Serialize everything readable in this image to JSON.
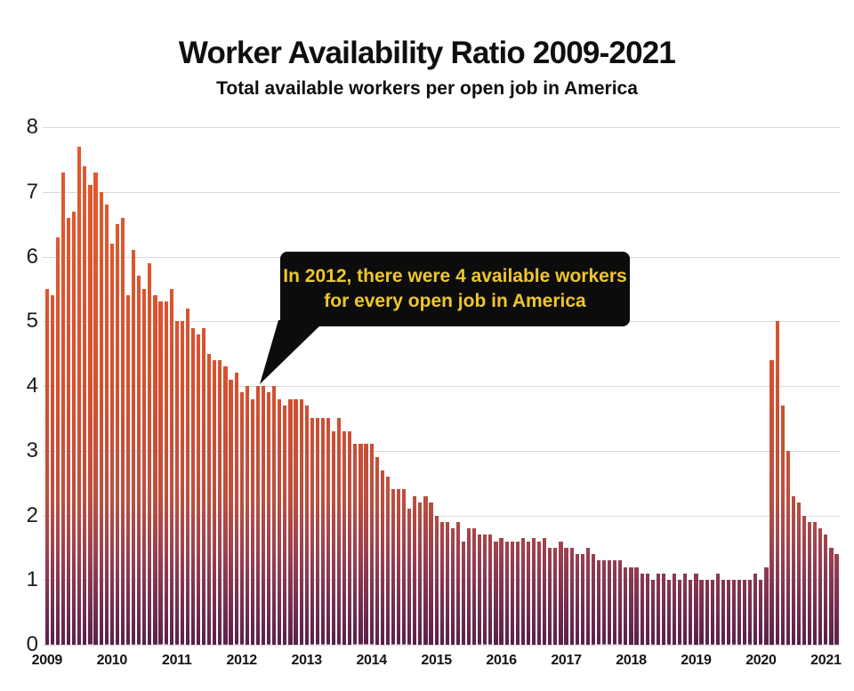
{
  "header": {
    "title": "Worker Availability Ratio 2009-2021",
    "subtitle": "Total available workers per open job in America"
  },
  "annotation": {
    "line1": "In 2012, there were 4 available workers",
    "line2": "for every open job in America",
    "points_to": {
      "month": "2012-04",
      "value": 4.0
    }
  },
  "colors": {
    "background": "#ffffff",
    "grid": "#dadada",
    "axis_text": "#1d1d1d",
    "callout_bg": "#0c0c0c",
    "callout_text": "#efc72b",
    "bar_gradient_stops": [
      {
        "pct": 0,
        "color": "#e45a2d"
      },
      {
        "pct": 27,
        "color": "#dd5630"
      },
      {
        "pct": 49,
        "color": "#d5512f"
      },
      {
        "pct": 72,
        "color": "#bc4f40"
      },
      {
        "pct": 82,
        "color": "#9c4150"
      },
      {
        "pct": 94,
        "color": "#6f2b50"
      },
      {
        "pct": 100,
        "color": "#5a2147"
      }
    ]
  },
  "chart_data": {
    "type": "bar",
    "title": "Worker Availability Ratio 2009-2021",
    "subtitle": "Total available workers per open job in America",
    "xlabel": "",
    "ylabel": "available workers per open job",
    "ylim": [
      0,
      8
    ],
    "yticks": [
      0,
      1,
      2,
      3,
      4,
      5,
      6,
      7,
      8
    ],
    "grid": true,
    "legend": false,
    "x_frequency": "monthly",
    "x_start": "2009-01",
    "x_end": "2021-03",
    "year_tick_labels": [
      "2009",
      "2010",
      "2011",
      "2012",
      "2013",
      "2014",
      "2015",
      "2016",
      "2017",
      "2018",
      "2019",
      "2020",
      "2021"
    ],
    "series": [
      {
        "year": "2009",
        "values": [
          5.5,
          5.4,
          6.3,
          7.3,
          6.6,
          6.7,
          7.7,
          7.4,
          7.1,
          7.3,
          7.0,
          6.8
        ]
      },
      {
        "year": "2010",
        "values": [
          6.2,
          6.5,
          6.6,
          5.4,
          6.1,
          5.7,
          5.5,
          5.9,
          5.4,
          5.3,
          5.3,
          5.5
        ]
      },
      {
        "year": "2011",
        "values": [
          5.0,
          5.0,
          5.2,
          4.9,
          4.8,
          4.9,
          4.5,
          4.4,
          4.4,
          4.3,
          4.1,
          4.2
        ]
      },
      {
        "year": "2012",
        "values": [
          3.9,
          4.0,
          3.8,
          4.0,
          4.0,
          3.9,
          4.0,
          3.8,
          3.7,
          3.8,
          3.8,
          3.8
        ]
      },
      {
        "year": "2013",
        "values": [
          3.7,
          3.5,
          3.5,
          3.5,
          3.5,
          3.3,
          3.5,
          3.3,
          3.3,
          3.1,
          3.1,
          3.1
        ]
      },
      {
        "year": "2014",
        "values": [
          3.1,
          2.9,
          2.7,
          2.6,
          2.4,
          2.4,
          2.4,
          2.1,
          2.3,
          2.2,
          2.3,
          2.2
        ]
      },
      {
        "year": "2015",
        "values": [
          2.0,
          1.9,
          1.9,
          1.8,
          1.9,
          1.6,
          1.8,
          1.8,
          1.7,
          1.7,
          1.7,
          1.6
        ]
      },
      {
        "year": "2016",
        "values": [
          1.65,
          1.6,
          1.6,
          1.6,
          1.65,
          1.6,
          1.65,
          1.6,
          1.65,
          1.5,
          1.5,
          1.6
        ]
      },
      {
        "year": "2017",
        "values": [
          1.5,
          1.5,
          1.4,
          1.4,
          1.5,
          1.4,
          1.3,
          1.3,
          1.3,
          1.3,
          1.3,
          1.2
        ]
      },
      {
        "year": "2018",
        "values": [
          1.2,
          1.2,
          1.1,
          1.1,
          1.0,
          1.1,
          1.1,
          1.0,
          1.1,
          1.0,
          1.1,
          1.0
        ]
      },
      {
        "year": "2019",
        "values": [
          1.1,
          1.0,
          1.0,
          1.0,
          1.1,
          1.0,
          1.0,
          1.0,
          1.0,
          1.0,
          1.0,
          1.1
        ]
      },
      {
        "year": "2020",
        "values": [
          1.0,
          1.2,
          4.4,
          5.0,
          3.7,
          3.0,
          2.3,
          2.2,
          2.0,
          1.9,
          1.9,
          1.8
        ]
      },
      {
        "year": "2021",
        "values": [
          1.7,
          1.5,
          1.4
        ]
      }
    ]
  }
}
